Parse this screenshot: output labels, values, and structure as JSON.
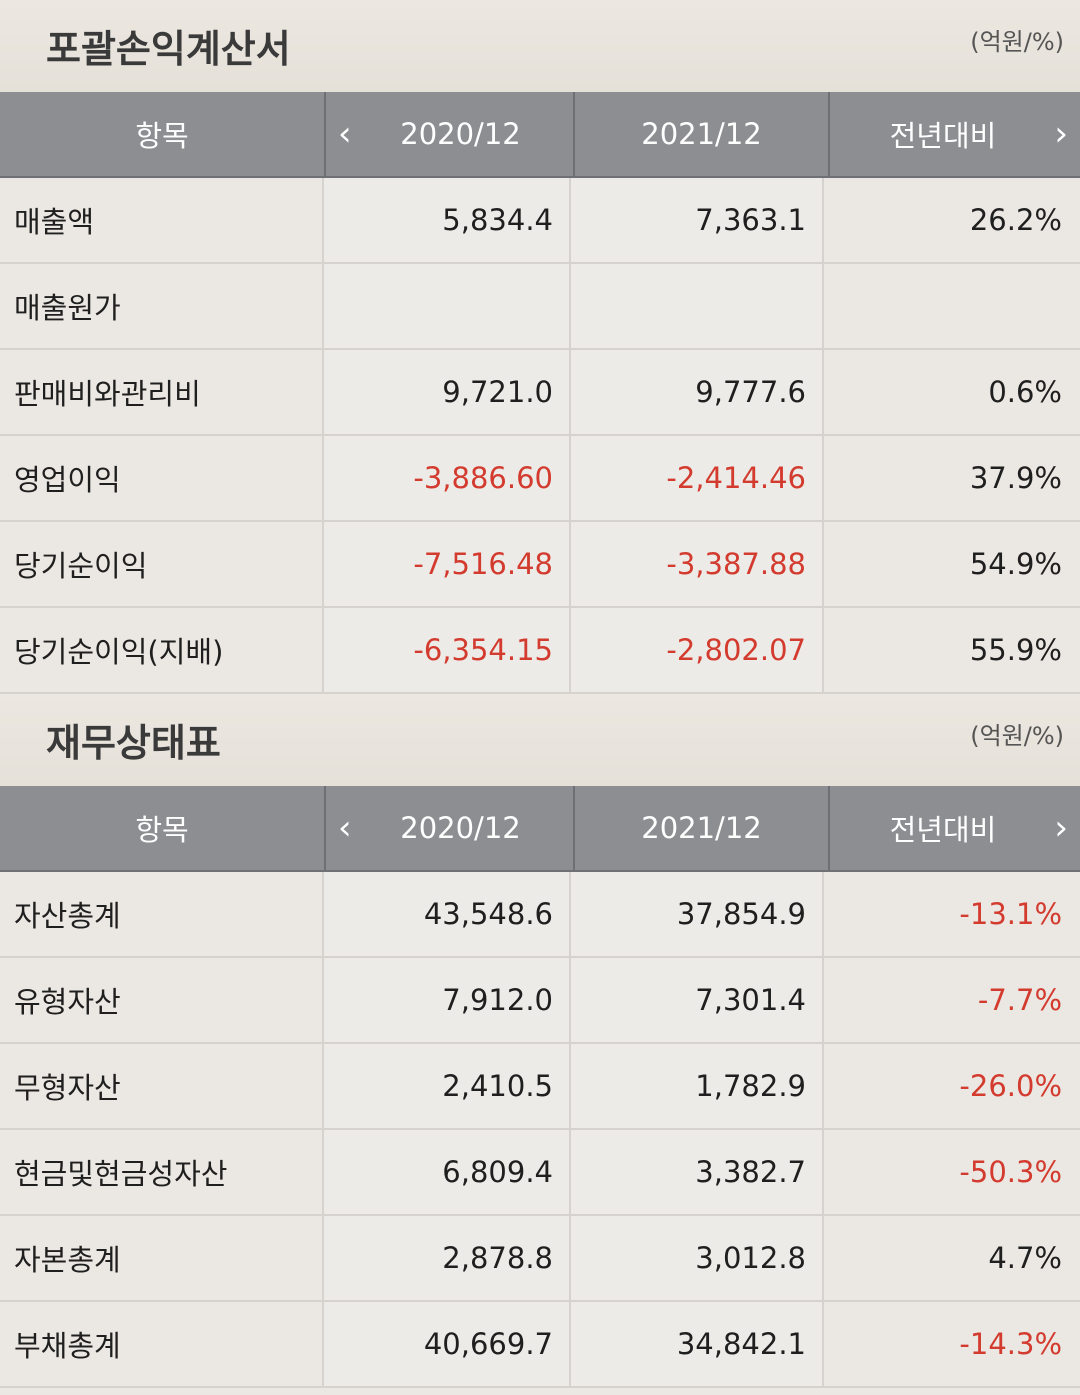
{
  "sections": [
    {
      "title": "포괄손익계산서",
      "unit": "(억원/%)",
      "columns": {
        "item": "항목",
        "prev": "2020/12",
        "curr": "2021/12",
        "change": "전년대비"
      },
      "rows": [
        {
          "label": "매출액",
          "prev": "5,834.4",
          "curr": "7,363.1",
          "change": "26.2%",
          "prev_neg": false,
          "curr_neg": false,
          "change_neg": false
        },
        {
          "label": "매출원가",
          "prev": "",
          "curr": "",
          "change": "",
          "prev_neg": false,
          "curr_neg": false,
          "change_neg": false
        },
        {
          "label": "판매비와관리비",
          "prev": "9,721.0",
          "curr": "9,777.6",
          "change": "0.6%",
          "prev_neg": false,
          "curr_neg": false,
          "change_neg": false
        },
        {
          "label": "영업이익",
          "prev": "-3,886.60",
          "curr": "-2,414.46",
          "change": "37.9%",
          "prev_neg": true,
          "curr_neg": true,
          "change_neg": false
        },
        {
          "label": "당기순이익",
          "prev": "-7,516.48",
          "curr": "-3,387.88",
          "change": "54.9%",
          "prev_neg": true,
          "curr_neg": true,
          "change_neg": false
        },
        {
          "label": "당기순이익(지배)",
          "prev": "-6,354.15",
          "curr": "-2,802.07",
          "change": "55.9%",
          "prev_neg": true,
          "curr_neg": true,
          "change_neg": false
        }
      ]
    },
    {
      "title": "재무상태표",
      "unit": "(억원/%)",
      "columns": {
        "item": "항목",
        "prev": "2020/12",
        "curr": "2021/12",
        "change": "전년대비"
      },
      "rows": [
        {
          "label": "자산총계",
          "prev": "43,548.6",
          "curr": "37,854.9",
          "change": "-13.1%",
          "prev_neg": false,
          "curr_neg": false,
          "change_neg": true
        },
        {
          "label": "유형자산",
          "prev": "7,912.0",
          "curr": "7,301.4",
          "change": "-7.7%",
          "prev_neg": false,
          "curr_neg": false,
          "change_neg": true
        },
        {
          "label": "무형자산",
          "prev": "2,410.5",
          "curr": "1,782.9",
          "change": "-26.0%",
          "prev_neg": false,
          "curr_neg": false,
          "change_neg": true
        },
        {
          "label": "현금및현금성자산",
          "prev": "6,809.4",
          "curr": "3,382.7",
          "change": "-50.3%",
          "prev_neg": false,
          "curr_neg": false,
          "change_neg": true
        },
        {
          "label": "자본총계",
          "prev": "2,878.8",
          "curr": "3,012.8",
          "change": "4.7%",
          "prev_neg": false,
          "curr_neg": false,
          "change_neg": false
        },
        {
          "label": "부채총계",
          "prev": "40,669.7",
          "curr": "34,842.1",
          "change": "-14.3%",
          "prev_neg": false,
          "curr_neg": false,
          "change_neg": true
        }
      ]
    }
  ],
  "icons": {
    "prev": "chevron-left-icon",
    "next": "chevron-right-icon"
  },
  "colors": {
    "negative": "#d33b2f",
    "header_bg": "#8d8e92"
  }
}
